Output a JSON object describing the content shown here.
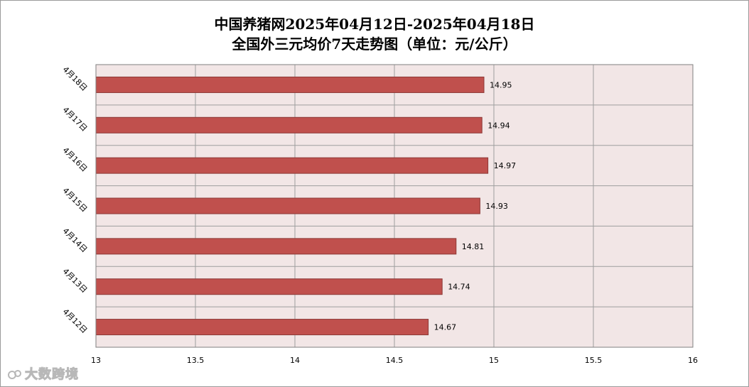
{
  "chart_data": {
    "type": "bar",
    "orientation": "horizontal",
    "title": "中国养猪网2025年04月12日-2025年04月18日",
    "subtitle": "全国外三元均价7天走势图（单位：元/公斤）",
    "categories": [
      "4月18日",
      "4月17日",
      "4月16日",
      "4月15日",
      "4月14日",
      "4月13日",
      "4月12日"
    ],
    "values": [
      14.95,
      14.94,
      14.97,
      14.93,
      14.81,
      14.74,
      14.67
    ],
    "data_labels": [
      "14.95",
      "14.94",
      "14.97",
      "14.93",
      "14.81",
      "14.74",
      "14.67"
    ],
    "xlim": [
      13,
      16
    ],
    "x_ticks": [
      13,
      13.5,
      14,
      14.5,
      15,
      15.5,
      16
    ],
    "x_tick_labels": [
      "13",
      "13.5",
      "14",
      "14.5",
      "15",
      "15.5",
      "16"
    ],
    "grid": true,
    "legend": "none",
    "colors": {
      "bar_fill": "#c0504d",
      "bar_stroke": "#8c3836",
      "plot_bg": "#f2e6e6",
      "grid": "#9e9e9e"
    }
  },
  "watermark": {
    "text": "大数跨境",
    "icon": "brand-logo-icon"
  }
}
